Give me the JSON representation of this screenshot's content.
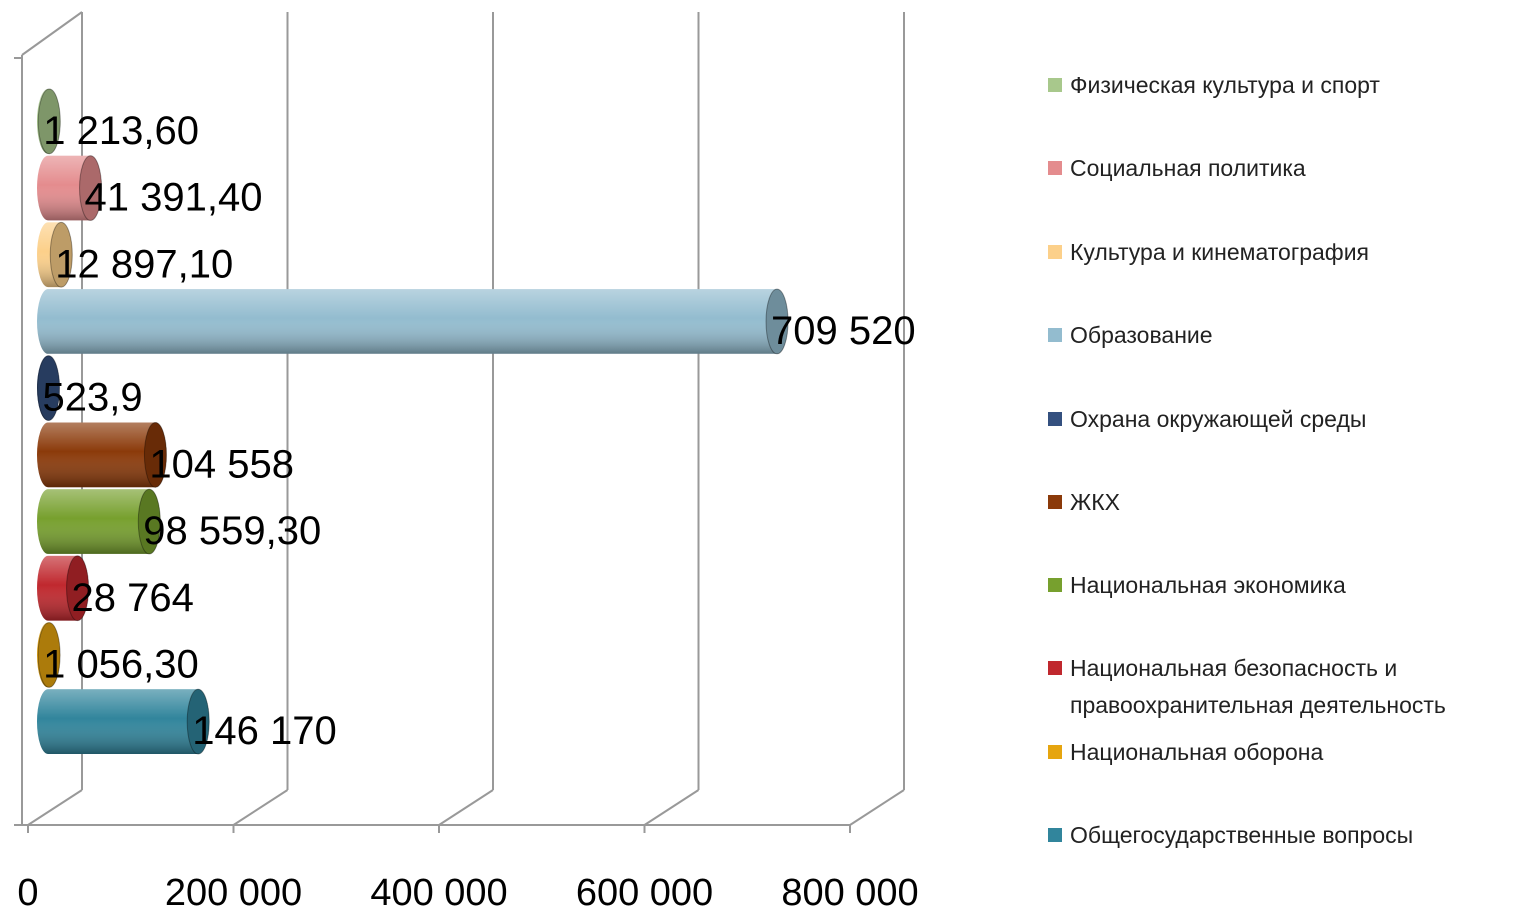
{
  "chart_data": {
    "type": "bar",
    "orientation": "horizontal",
    "style": "3d-cylinder",
    "series": [
      {
        "name": "Общегосударственные вопросы",
        "color": "#31859c",
        "values": [
          146170
        ],
        "value_labels": [
          "146 170"
        ]
      },
      {
        "name": "Национальная оборона",
        "color": "#e6a50f",
        "values": [
          1056.3
        ],
        "value_labels": [
          "1 056,30"
        ]
      },
      {
        "name": "Национальная безопасность и правоохранительная деятельность",
        "color": "#c0282e",
        "values": [
          28764
        ],
        "value_labels": [
          "28 764"
        ]
      },
      {
        "name": "Национальная экономика",
        "color": "#77a02e",
        "values": [
          98559.3
        ],
        "value_labels": [
          "98 559,30"
        ]
      },
      {
        "name": "ЖКХ",
        "color": "#8b3a0a",
        "values": [
          104558
        ],
        "value_labels": [
          "104 558"
        ]
      },
      {
        "name": "Охрана окружающей среды",
        "color": "#34507f",
        "values": [
          523.9
        ],
        "value_labels": [
          "523,9"
        ]
      },
      {
        "name": "Образование",
        "color": "#93bccf",
        "values": [
          709520
        ],
        "value_labels": [
          "709 520"
        ]
      },
      {
        "name": "Культура и кинематография",
        "color": "#fcd08a",
        "values": [
          12897.1
        ],
        "value_labels": [
          "12 897,10"
        ]
      },
      {
        "name": "Социальная политика",
        "color": "#e48c8e",
        "values": [
          41391.4
        ],
        "value_labels": [
          "41 391,40"
        ]
      },
      {
        "name": "Физическая культура и спорт",
        "color": "#a8c88c",
        "values": [
          1213.6
        ],
        "value_labels": [
          "1 213,60"
        ]
      }
    ],
    "xlim": [
      0,
      800000
    ],
    "xticks": [
      0,
      {
        "value": 200000,
        "label": "200 000"
      },
      {
        "value": 400000,
        "label": "400 000"
      },
      {
        "value": 600000,
        "label": "600 000"
      },
      {
        "value": 800000,
        "label": "800 000"
      }
    ],
    "grid": true,
    "legend": "right"
  }
}
